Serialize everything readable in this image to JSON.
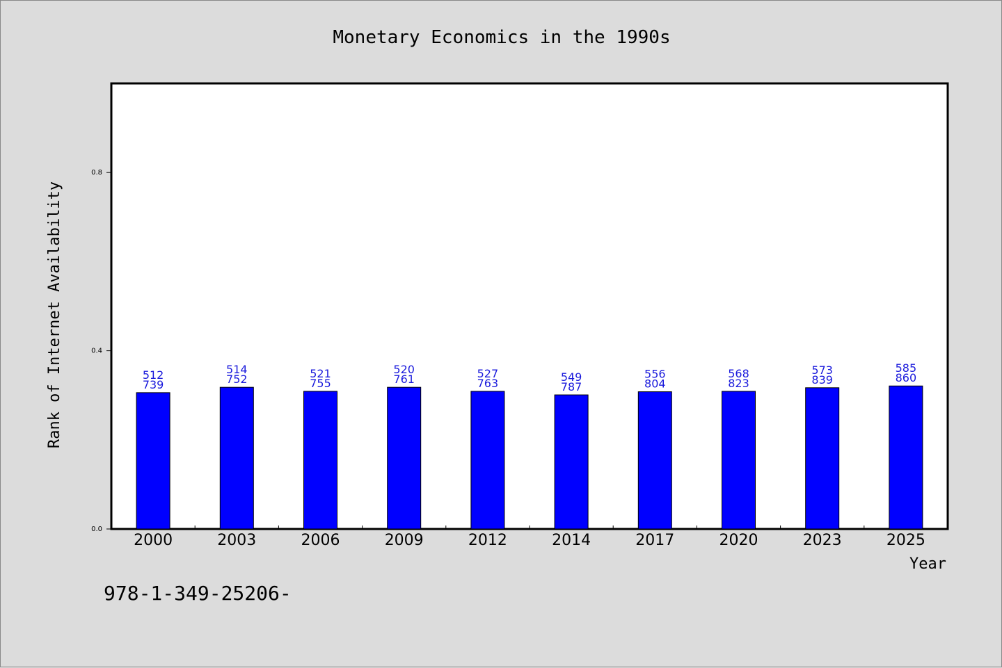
{
  "chart_data": {
    "type": "bar",
    "title": "Monetary Economics in the 1990s",
    "xlabel": "Year",
    "ylabel": "Rank of Internet Availability",
    "categories": [
      "2000",
      "2003",
      "2006",
      "2009",
      "2012",
      "2014",
      "2017",
      "2020",
      "2023",
      "2025"
    ],
    "values": [
      0.306,
      0.318,
      0.309,
      0.318,
      0.309,
      0.301,
      0.308,
      0.309,
      0.317,
      0.321
    ],
    "data_labels": [
      [
        "512",
        "739"
      ],
      [
        "514",
        "752"
      ],
      [
        "521",
        "755"
      ],
      [
        "520",
        "761"
      ],
      [
        "527",
        "763"
      ],
      [
        "549",
        "787"
      ],
      [
        "556",
        "804"
      ],
      [
        "568",
        "823"
      ],
      [
        "573",
        "839"
      ],
      [
        "585",
        "860"
      ]
    ],
    "yticks": [
      "0.0",
      "0.4",
      "0.8"
    ],
    "ytick_values": [
      0.0,
      0.4,
      0.8
    ],
    "ylim": [
      0,
      1.0
    ],
    "grid": false,
    "bar_color": "#0000ff",
    "label_color": "#1a1adc",
    "background_color": "#dcdcdc",
    "plot_background": "#ffffff"
  },
  "footnote": "978-1-349-25206-"
}
